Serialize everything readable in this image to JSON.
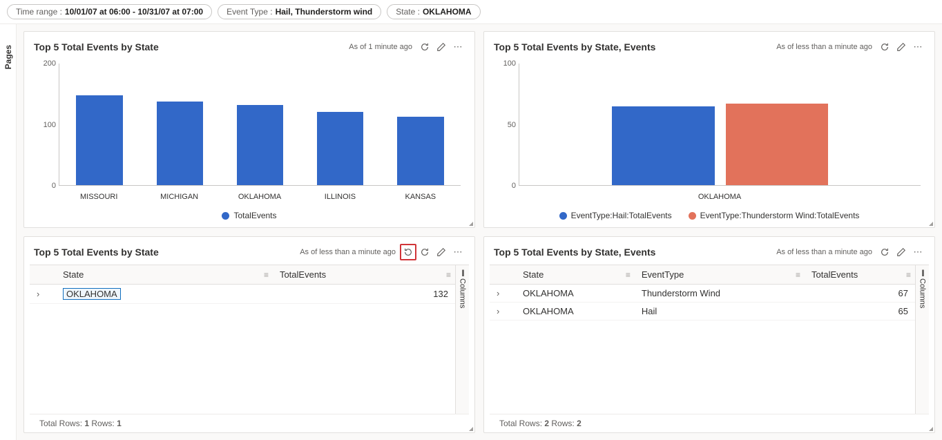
{
  "filters": [
    {
      "label": "Time range :",
      "value": "10/01/07 at 06:00 - 10/31/07 at 07:00"
    },
    {
      "label": "Event Type :",
      "value": "Hail, Thunderstorm wind"
    },
    {
      "label": "State :",
      "value": "OKLAHOMA"
    }
  ],
  "pages_label": "Pages",
  "columns_label": "Columns",
  "colors": {
    "bar_blue": "#3268c8",
    "bar_orange": "#e2725b"
  },
  "tile1": {
    "title": "Top 5 Total Events by State",
    "asof": "As of 1 minute ago",
    "type": "bar",
    "ylim": [
      0,
      200
    ],
    "yticks": [
      0,
      100,
      200
    ],
    "categories": [
      "MISSOURI",
      "MICHIGAN",
      "OKLAHOMA",
      "ILLINOIS",
      "KANSAS"
    ],
    "values": [
      148,
      138,
      132,
      120,
      113
    ],
    "bar_color": "#3268c8",
    "legend": [
      {
        "label": "TotalEvents",
        "color": "#3268c8"
      }
    ]
  },
  "tile2": {
    "title": "Top 5 Total Events by State, Events",
    "asof": "As of less than a minute ago",
    "type": "bar-grouped",
    "ylim": [
      0,
      100
    ],
    "yticks": [
      0,
      50,
      100
    ],
    "categories": [
      "OKLAHOMA"
    ],
    "series": [
      {
        "label": "EventType:Hail:TotalEvents",
        "color": "#3268c8",
        "values": [
          65
        ]
      },
      {
        "label": "EventType:Thunderstorm Wind:TotalEvents",
        "color": "#e2725b",
        "values": [
          67
        ]
      }
    ]
  },
  "tile3": {
    "title": "Top 5 Total Events by State",
    "asof": "As of less than a minute ago",
    "columns": [
      "State",
      "TotalEvents"
    ],
    "rows": [
      [
        "OKLAHOMA",
        "132"
      ]
    ],
    "highlight_cell": [
      0,
      0
    ],
    "footer_total": "1",
    "footer_rows": "1"
  },
  "tile4": {
    "title": "Top 5 Total Events by State, Events",
    "asof": "As of less than a minute ago",
    "columns": [
      "State",
      "EventType",
      "TotalEvents"
    ],
    "rows": [
      [
        "OKLAHOMA",
        "Thunderstorm Wind",
        "67"
      ],
      [
        "OKLAHOMA",
        "Hail",
        "65"
      ]
    ],
    "footer_total": "2",
    "footer_rows": "2"
  },
  "footer_labels": {
    "total": "Total Rows: ",
    "rows": "  Rows: "
  }
}
